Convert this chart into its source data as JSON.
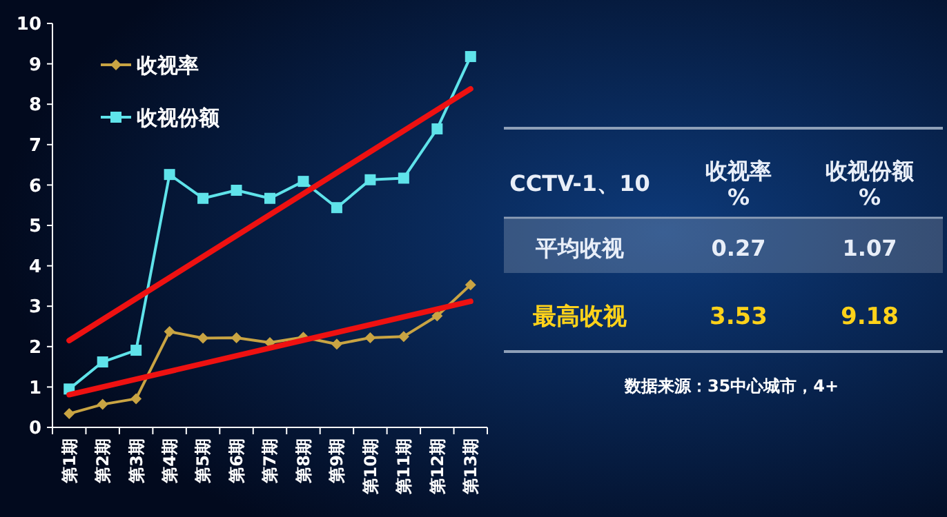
{
  "chart_data": [
    {
      "type": "line",
      "categories": [
        "第1期",
        "第2期",
        "第3期",
        "第4期",
        "第5期",
        "第6期",
        "第7期",
        "第8期",
        "第9期",
        "第10期",
        "第11期",
        "第12期",
        "第13期"
      ],
      "series": [
        {
          "name": "收视率",
          "color": "#c9a443",
          "marker": "diamond",
          "values": [
            0.34,
            0.57,
            0.71,
            2.37,
            2.21,
            2.22,
            2.1,
            2.23,
            2.06,
            2.22,
            2.25,
            2.76,
            3.53
          ]
        },
        {
          "name": "收视份额",
          "color": "#5fe3ea",
          "marker": "square",
          "values": [
            0.95,
            1.62,
            1.91,
            6.26,
            5.67,
            5.87,
            5.67,
            6.09,
            5.44,
            6.13,
            6.17,
            7.39,
            9.18
          ]
        },
        {
          "type": "line",
          "color": "#ee1111",
          "marker": "none",
          "x": [
            "第1期",
            "第13期"
          ],
          "values": [
            2.15,
            8.38
          ]
        },
        {
          "type": "line",
          "color": "#ee1111",
          "marker": "none",
          "x": [
            "第1期",
            "第13期"
          ],
          "values": [
            0.81,
            3.12
          ]
        }
      ],
      "ylim": [
        0,
        10
      ],
      "yticks": [
        0,
        1,
        2,
        3,
        4,
        5,
        6,
        7,
        8,
        9,
        10
      ],
      "grid": false,
      "legend": "top left"
    },
    {
      "type": "other",
      "annotations": [
        "CCTV-1、10",
        "收视率\n%",
        "收视份额\n%",
        "平均收视",
        "0.27",
        "1.07",
        "最高收视",
        "3.53",
        "9.18",
        "数据来源：35中心城市，4+"
      ]
    }
  ]
}
